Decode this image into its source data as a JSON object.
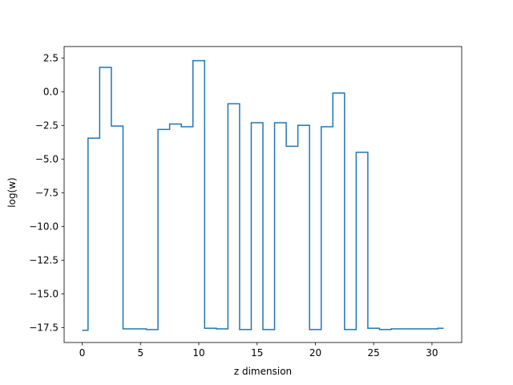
{
  "chart_data": {
    "type": "line",
    "drawstyle": "steps-mid",
    "title": "",
    "xlabel": "z dimension",
    "ylabel": "log(w)",
    "xlim": [
      -1.55,
      32.55
    ],
    "ylim": [
      -18.61,
      3.35
    ],
    "grid": false,
    "legend": "none",
    "x_ticks": [
      0,
      5,
      10,
      15,
      20,
      25,
      30
    ],
    "x_tick_labels": [
      "0",
      "5",
      "10",
      "15",
      "20",
      "25",
      "30"
    ],
    "y_ticks": [
      2.5,
      0.0,
      -2.5,
      -5.0,
      -7.5,
      -10.0,
      -12.5,
      -15.0,
      -17.5
    ],
    "y_tick_labels": [
      "2.5",
      "0.0",
      "−2.5",
      "−5.0",
      "−7.5",
      "−10.0",
      "−12.5",
      "−15.0",
      "−17.5"
    ],
    "line_color": "#1f77b4",
    "x": [
      0,
      1,
      2,
      3,
      4,
      5,
      6,
      7,
      8,
      9,
      10,
      11,
      12,
      13,
      14,
      15,
      16,
      17,
      18,
      19,
      20,
      21,
      22,
      23,
      24,
      25,
      26,
      27,
      28,
      29,
      30,
      31
    ],
    "values": [
      -17.7,
      -3.45,
      1.8,
      -2.55,
      -17.6,
      -17.6,
      -17.65,
      -2.8,
      -2.4,
      -2.6,
      2.3,
      -17.55,
      -17.6,
      -0.9,
      -17.65,
      -2.3,
      -17.65,
      -2.3,
      -4.05,
      -2.5,
      -17.65,
      -2.6,
      -0.1,
      -17.65,
      -4.5,
      -17.55,
      -17.65,
      -17.6,
      -17.6,
      -17.6,
      -17.6,
      -17.55
    ]
  }
}
